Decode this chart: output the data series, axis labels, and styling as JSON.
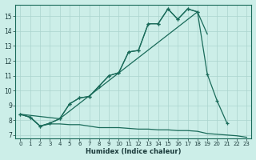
{
  "xlabel": "Humidex (Indice chaleur)",
  "bg_color": "#cceee8",
  "grid_color": "#aad4ce",
  "line_color": "#1a6b5a",
  "xlim": [
    -0.5,
    23.5
  ],
  "ylim": [
    6.8,
    15.8
  ],
  "xticks": [
    0,
    1,
    2,
    3,
    4,
    5,
    6,
    7,
    8,
    9,
    10,
    11,
    12,
    13,
    14,
    15,
    16,
    17,
    18,
    19,
    20,
    21,
    22,
    23
  ],
  "yticks": [
    7,
    8,
    9,
    10,
    11,
    12,
    13,
    14,
    15
  ],
  "series": [
    {
      "x": [
        0,
        1,
        2,
        3,
        4,
        5,
        6,
        7,
        8,
        9,
        10,
        11,
        12,
        13,
        14,
        15,
        16,
        17,
        18
      ],
      "y": [
        8.4,
        8.2,
        7.6,
        7.8,
        8.1,
        9.1,
        9.5,
        9.6,
        10.3,
        11.0,
        11.2,
        12.6,
        12.7,
        14.5,
        14.5,
        15.5,
        14.8,
        15.5,
        15.3
      ],
      "markers": true
    },
    {
      "x": [
        0,
        1,
        2,
        3,
        4,
        5,
        6,
        7,
        8,
        9,
        10,
        11,
        12,
        13,
        14,
        15,
        16,
        17,
        18,
        19,
        20,
        21
      ],
      "y": [
        8.4,
        8.2,
        7.6,
        7.8,
        8.1,
        9.1,
        9.5,
        9.6,
        10.3,
        11.0,
        11.2,
        12.6,
        12.7,
        14.5,
        14.5,
        15.5,
        14.8,
        15.5,
        15.3,
        11.1,
        9.3,
        7.8
      ],
      "markers": true
    },
    {
      "x": [
        0,
        4,
        18,
        19
      ],
      "y": [
        8.4,
        8.1,
        15.3,
        13.8
      ],
      "markers": false
    },
    {
      "x": [
        0,
        1,
        2,
        3,
        4,
        5,
        6,
        7,
        8,
        9,
        10,
        11,
        12,
        13,
        14,
        15,
        16,
        17,
        18,
        19,
        20,
        21,
        22,
        23
      ],
      "y": [
        8.4,
        8.2,
        7.6,
        7.75,
        7.75,
        7.7,
        7.7,
        7.6,
        7.5,
        7.5,
        7.5,
        7.45,
        7.4,
        7.4,
        7.35,
        7.35,
        7.3,
        7.3,
        7.25,
        7.1,
        7.05,
        7.0,
        6.95,
        6.85
      ],
      "markers": false
    }
  ]
}
